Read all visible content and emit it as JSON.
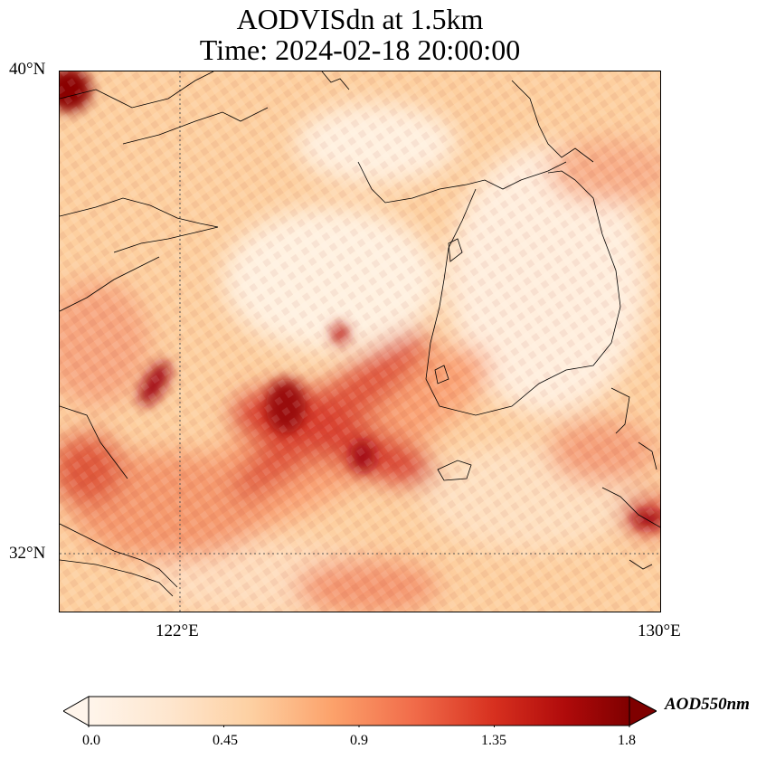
{
  "title": {
    "line1": "AODVISdn at 1.5km",
    "line2": "Time: 2024-02-18 20:00:00"
  },
  "axes": {
    "lat_labels": [
      "40°N",
      "32°N"
    ],
    "lon_labels": [
      "122°E",
      "130°E"
    ]
  },
  "colorbar": {
    "label": "AOD550nm",
    "ticks": [
      "0.0",
      "0.45",
      "0.9",
      "1.35",
      "1.8"
    ],
    "colormap": [
      "#fff5eb",
      "#fee6ce",
      "#fdd0a2",
      "#fdae6b",
      "#fd8d3c",
      "#f16913",
      "#d94801",
      "#a63603",
      "#7f2704"
    ]
  },
  "map_colors": {
    "low": "#fee6ce",
    "mid": "#fdae6b",
    "high": "#d7301f",
    "max": "#7f0000",
    "coastline": "#000000"
  }
}
